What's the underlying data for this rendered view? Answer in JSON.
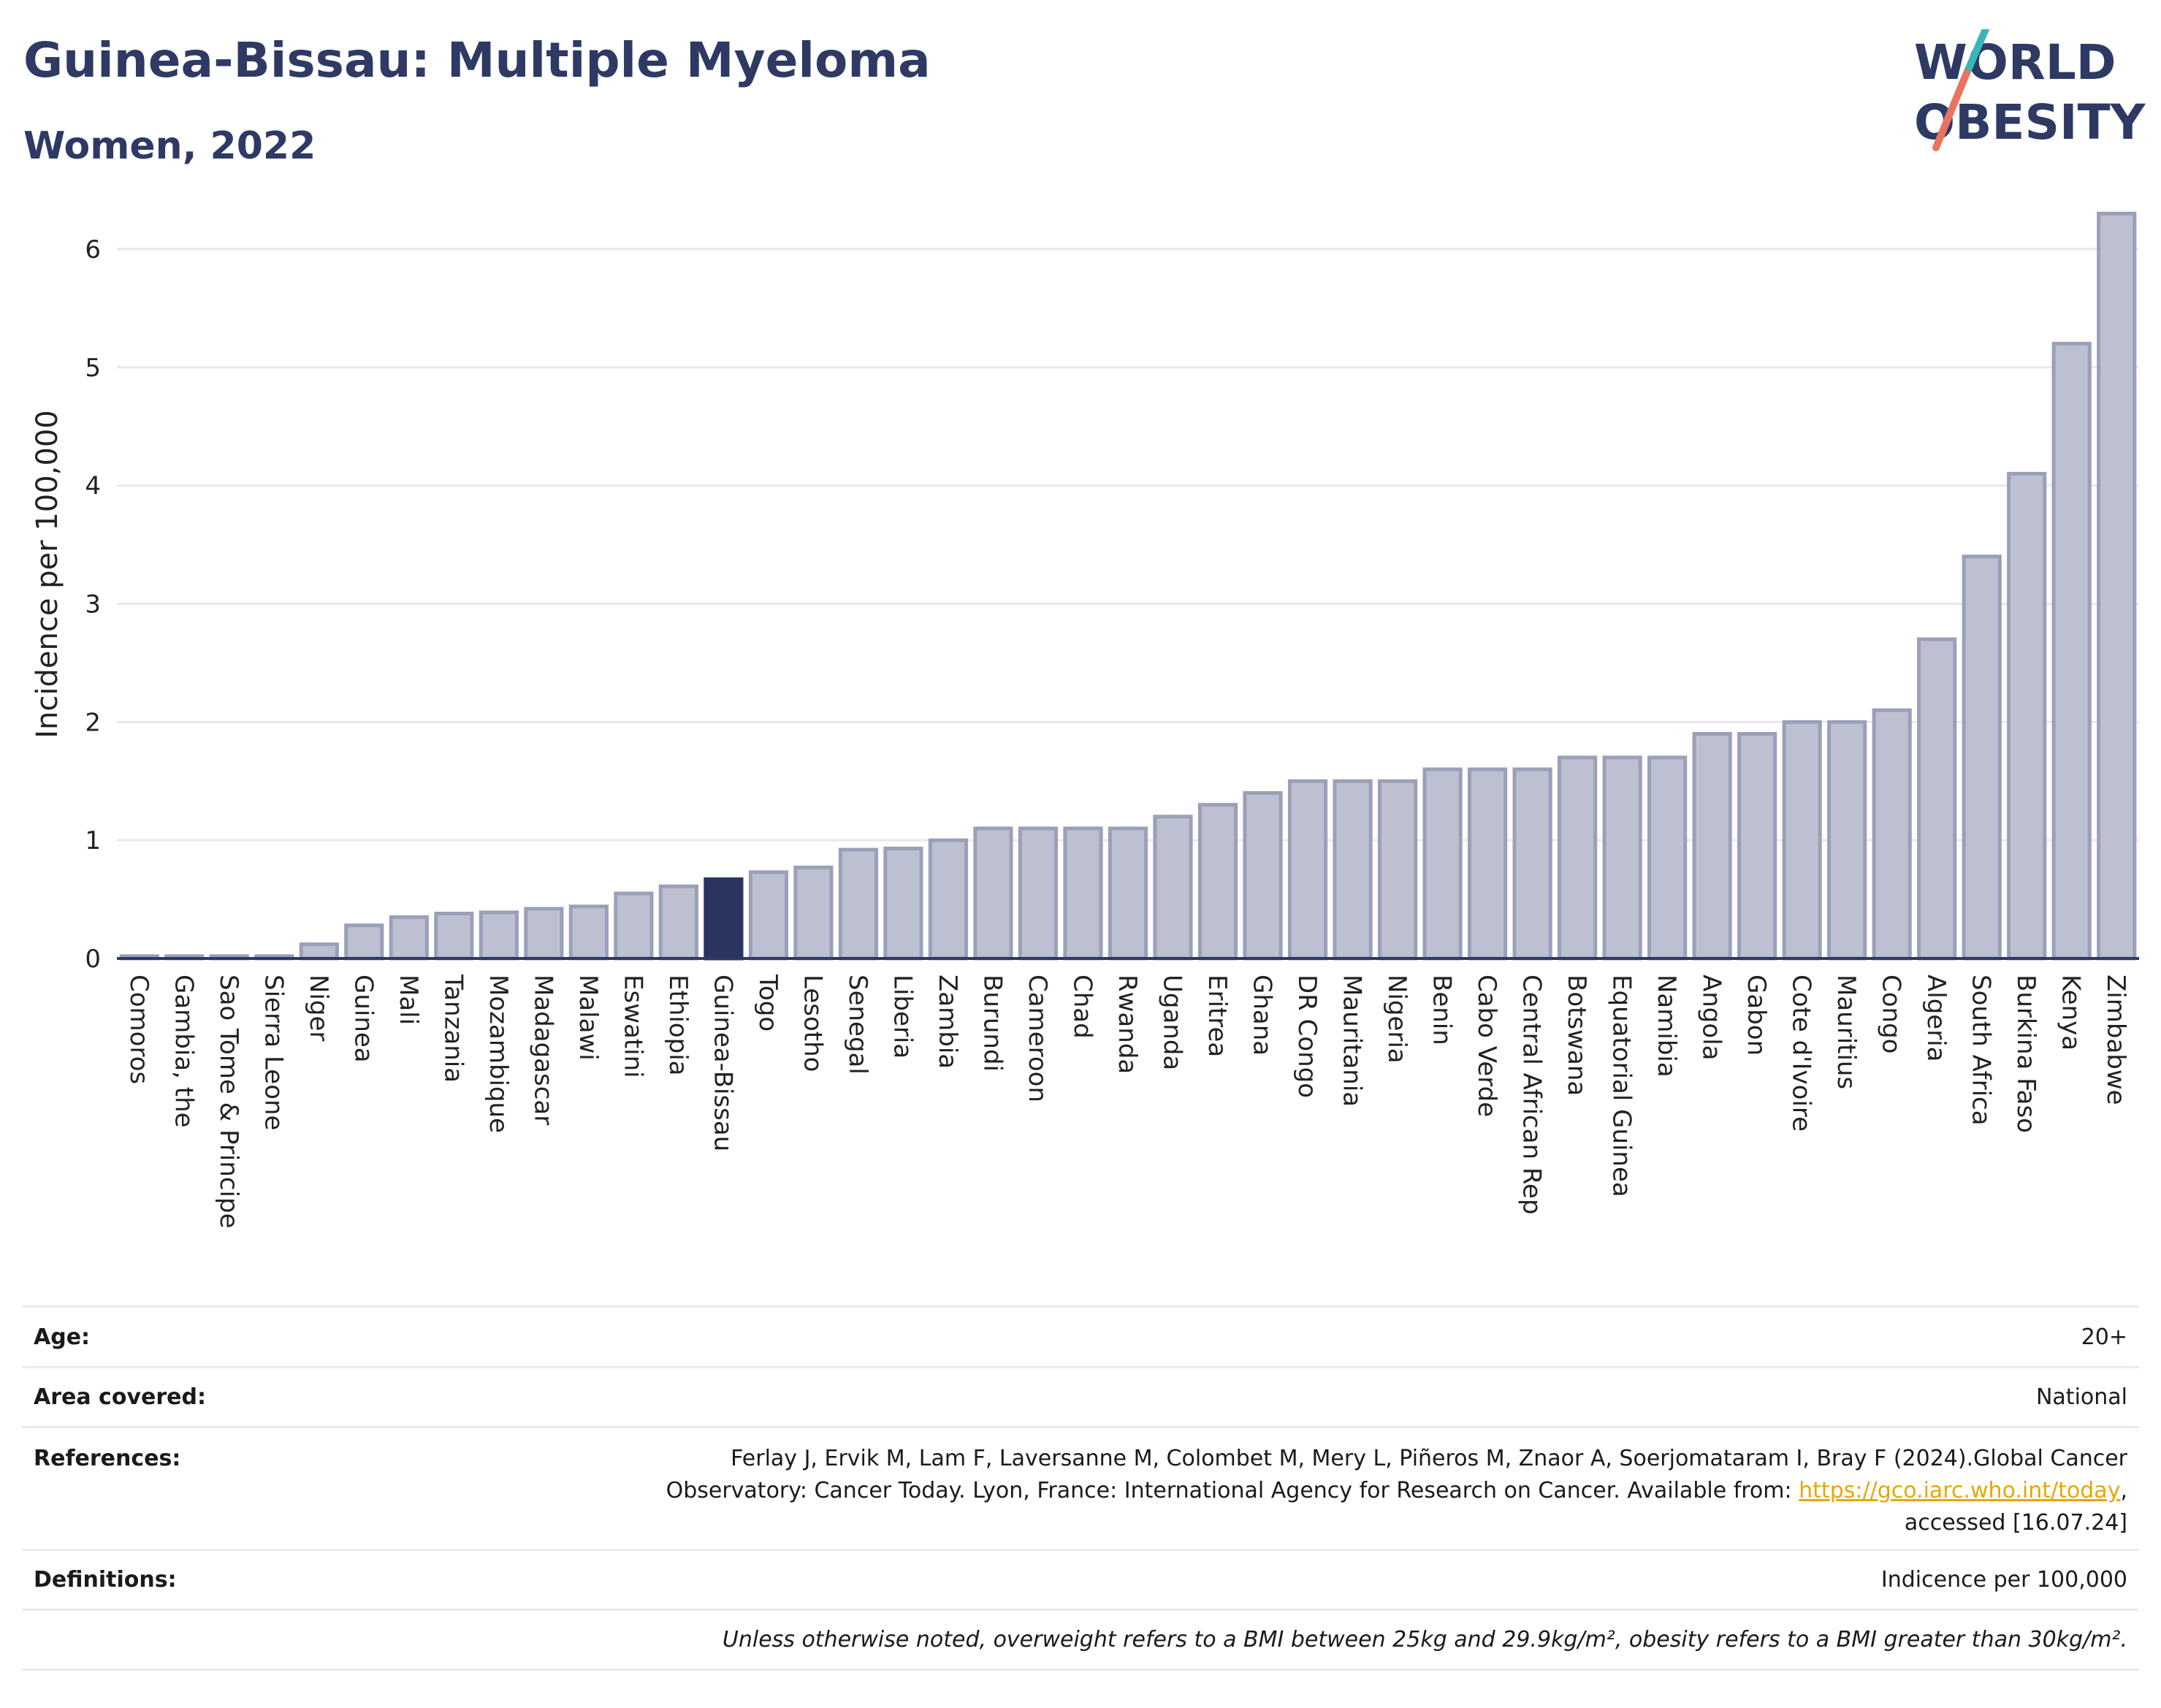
{
  "header": {
    "title": "Guinea-Bissau: Multiple Myeloma",
    "subtitle": "Women, 2022"
  },
  "logo": {
    "line1": "WORLD",
    "line2": "OBESITY"
  },
  "chart_data": {
    "type": "bar",
    "ylabel": "Incidence per 100,000",
    "xlabel": "",
    "ylim": [
      0,
      6.5
    ],
    "yticks": [
      0,
      1,
      2,
      3,
      4,
      5,
      6
    ],
    "grid": true,
    "highlight": "Guinea-Bissau",
    "colors": {
      "bar": "#bcc0d0",
      "bar_border": "#9aa0b8",
      "highlight": "#2b3562",
      "grid": "#e6e8ee",
      "axis": "#2e3a64"
    },
    "categories": [
      "Comoros",
      "Gambia, the",
      "Sao Tome & Principe",
      "Sierra Leone",
      "Niger",
      "Guinea",
      "Mali",
      "Tanzania",
      "Mozambique",
      "Madagascar",
      "Malawi",
      "Eswatini",
      "Ethiopia",
      "Guinea-Bissau",
      "Togo",
      "Lesotho",
      "Senegal",
      "Liberia",
      "Zambia",
      "Burundi",
      "Cameroon",
      "Chad",
      "Rwanda",
      "Uganda",
      "Eritrea",
      "Ghana",
      "DR Congo",
      "Mauritania",
      "Nigeria",
      "Benin",
      "Cabo Verde",
      "Central African Rep",
      "Botswana",
      "Equatorial Guinea",
      "Namibia",
      "Angola",
      "Gabon",
      "Cote d'Ivoire",
      "Mauritius",
      "Congo",
      "Algeria",
      "South Africa",
      "Burkina Faso",
      "Kenya",
      "Zimbabwe"
    ],
    "values": [
      0.02,
      0.02,
      0.02,
      0.02,
      0.12,
      0.28,
      0.35,
      0.38,
      0.39,
      0.42,
      0.44,
      0.55,
      0.61,
      0.67,
      0.73,
      0.77,
      0.92,
      0.93,
      1.0,
      1.1,
      1.1,
      1.1,
      1.1,
      1.2,
      1.3,
      1.4,
      1.5,
      1.5,
      1.5,
      1.6,
      1.6,
      1.6,
      1.7,
      1.7,
      1.7,
      1.9,
      1.9,
      2.0,
      2.0,
      2.1,
      2.7,
      3.4,
      4.1,
      5.2,
      6.3
    ]
  },
  "meta": {
    "age_label": "Age:",
    "age_value": "20+",
    "area_label": "Area covered:",
    "area_value": "National",
    "references_label": "References:",
    "references_line1": "Ferlay J, Ervik M, Lam F, Laversanne M, Colombet M, Mery L, Piñeros M, Znaor A, Soerjomataram I, Bray F (2024).Global Cancer",
    "references_line2": "Observatory: Cancer Today. Lyon, France: International Agency for Research on Cancer. Available from: ",
    "references_link": "https://gco.iarc.who.int/today",
    "references_line2_end": ",",
    "references_line3": "accessed [16.07.24]",
    "definitions_label": "Definitions:",
    "definitions_value": "Indicence per 100,000",
    "note": "Unless otherwise noted, overweight refers to a BMI between 25kg and 29.9kg/m², obesity refers to a BMI greater than 30kg/m²."
  }
}
